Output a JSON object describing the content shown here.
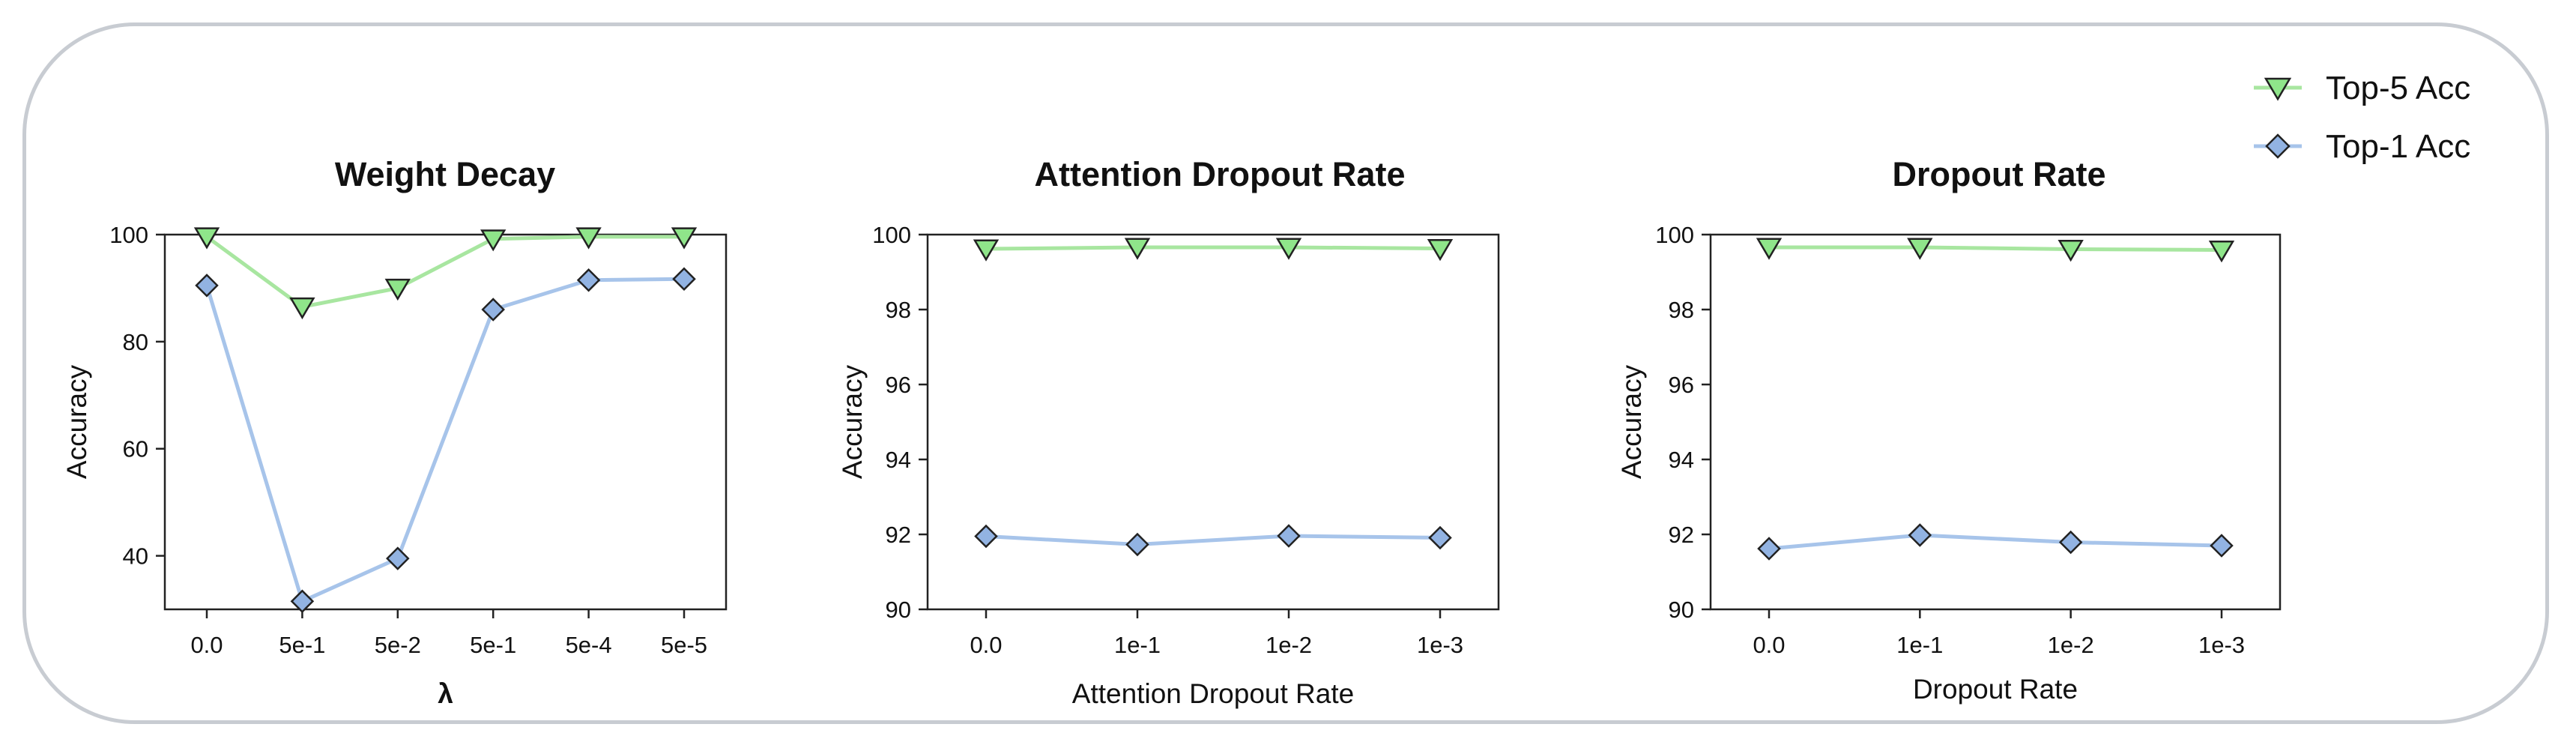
{
  "legend": {
    "top5": "Top-5 Acc",
    "top1": "Top-1 Acc"
  },
  "colors": {
    "top5_line": "#a8e6a0",
    "top5_marker": "#8fe58a",
    "top1_line": "#a7c4ea",
    "top1_marker": "#92b3e2",
    "frame": "#c8ccd2"
  },
  "chart_data": [
    {
      "type": "line",
      "title": "Weight Decay",
      "xlabel": "λ",
      "ylabel": "Accuracy",
      "categories": [
        "0.0",
        "5e-1",
        "5e-2",
        "5e-1",
        "5e-4",
        "5e-5"
      ],
      "ylim": [
        30,
        100
      ],
      "yticks": [
        40,
        60,
        80,
        100
      ],
      "series": [
        {
          "name": "Top-5 Acc",
          "marker": "triangle-down",
          "values": [
            99.6,
            86.5,
            90.0,
            99.2,
            99.6,
            99.6
          ]
        },
        {
          "name": "Top-1 Acc",
          "marker": "diamond",
          "values": [
            90.5,
            31.5,
            39.5,
            86.0,
            91.5,
            91.7
          ]
        }
      ],
      "grid": false
    },
    {
      "type": "line",
      "title": "Attention Dropout Rate",
      "xlabel": "Attention Dropout Rate",
      "ylabel": "Accuracy",
      "categories": [
        "0.0",
        "1e-1",
        "1e-2",
        "1e-3"
      ],
      "ylim": [
        90,
        100
      ],
      "yticks": [
        90,
        92,
        94,
        96,
        98,
        100
      ],
      "series": [
        {
          "name": "Top-5 Acc",
          "marker": "triangle-down",
          "values": [
            99.62,
            99.66,
            99.66,
            99.63
          ]
        },
        {
          "name": "Top-1 Acc",
          "marker": "diamond",
          "values": [
            91.95,
            91.73,
            91.96,
            91.91
          ]
        }
      ],
      "grid": false
    },
    {
      "type": "line",
      "title": "Dropout Rate",
      "xlabel": "Dropout Rate",
      "ylabel": "Accuracy",
      "categories": [
        "0.0",
        "1e-1",
        "1e-2",
        "1e-3"
      ],
      "ylim": [
        90,
        100
      ],
      "yticks": [
        90,
        92,
        94,
        96,
        98,
        100
      ],
      "series": [
        {
          "name": "Top-5 Acc",
          "marker": "triangle-down",
          "values": [
            99.66,
            99.66,
            99.61,
            99.59
          ]
        },
        {
          "name": "Top-1 Acc",
          "marker": "diamond",
          "values": [
            91.62,
            91.98,
            91.79,
            91.7
          ]
        }
      ],
      "grid": false
    }
  ]
}
